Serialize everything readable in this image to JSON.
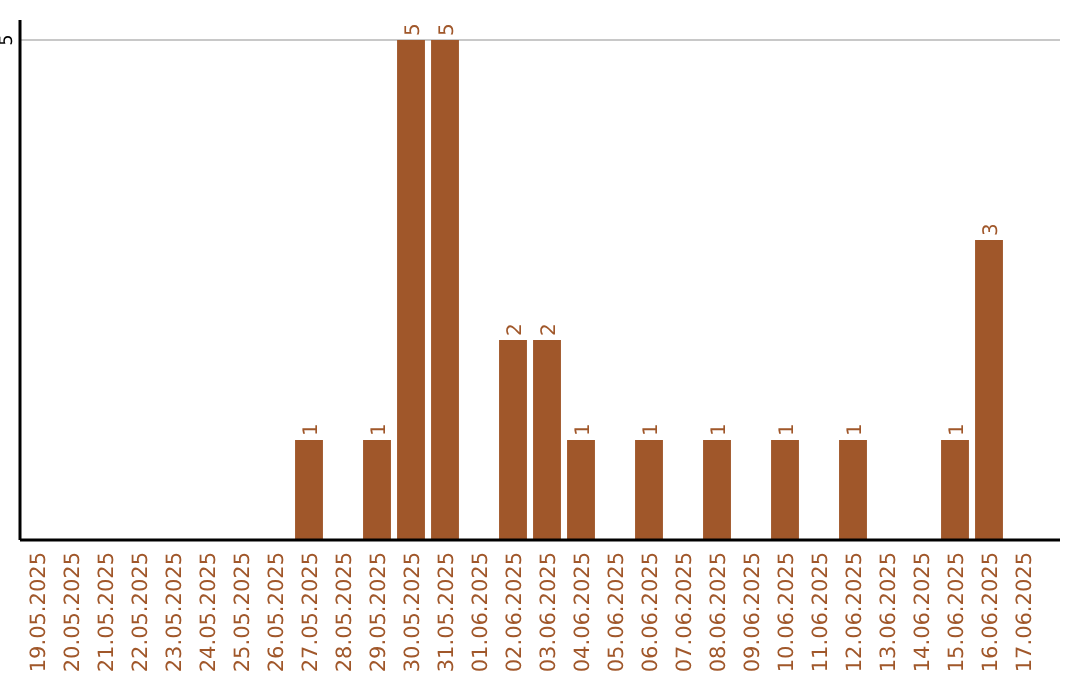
{
  "chart_data": {
    "type": "bar",
    "categories": [
      "19.05.2025",
      "20.05.2025",
      "21.05.2025",
      "22.05.2025",
      "23.05.2025",
      "24.05.2025",
      "25.05.2025",
      "26.05.2025",
      "27.05.2025",
      "28.05.2025",
      "29.05.2025",
      "30.05.2025",
      "31.05.2025",
      "01.06.2025",
      "02.06.2025",
      "03.06.2025",
      "04.06.2025",
      "05.06.2025",
      "06.06.2025",
      "07.06.2025",
      "08.06.2025",
      "09.06.2025",
      "10.06.2025",
      "11.06.2025",
      "12.06.2025",
      "13.06.2025",
      "14.06.2025",
      "15.06.2025",
      "16.06.2025",
      "17.06.2025"
    ],
    "values": [
      0,
      0,
      0,
      0,
      0,
      0,
      0,
      0,
      1,
      0,
      1,
      5,
      5,
      0,
      2,
      2,
      1,
      0,
      1,
      0,
      1,
      0,
      1,
      0,
      1,
      0,
      0,
      1,
      3,
      0
    ],
    "value_labels": [
      null,
      null,
      null,
      null,
      null,
      null,
      null,
      null,
      "1",
      null,
      "1",
      "5",
      "5",
      null,
      "2",
      "2",
      "1",
      null,
      "1",
      null,
      "1",
      null,
      "1",
      null,
      "1",
      null,
      null,
      "1",
      "3",
      null
    ],
    "color": "#a0572a",
    "ylim": [
      0,
      5.2
    ],
    "yticks": [
      5
    ],
    "grid": "y"
  }
}
